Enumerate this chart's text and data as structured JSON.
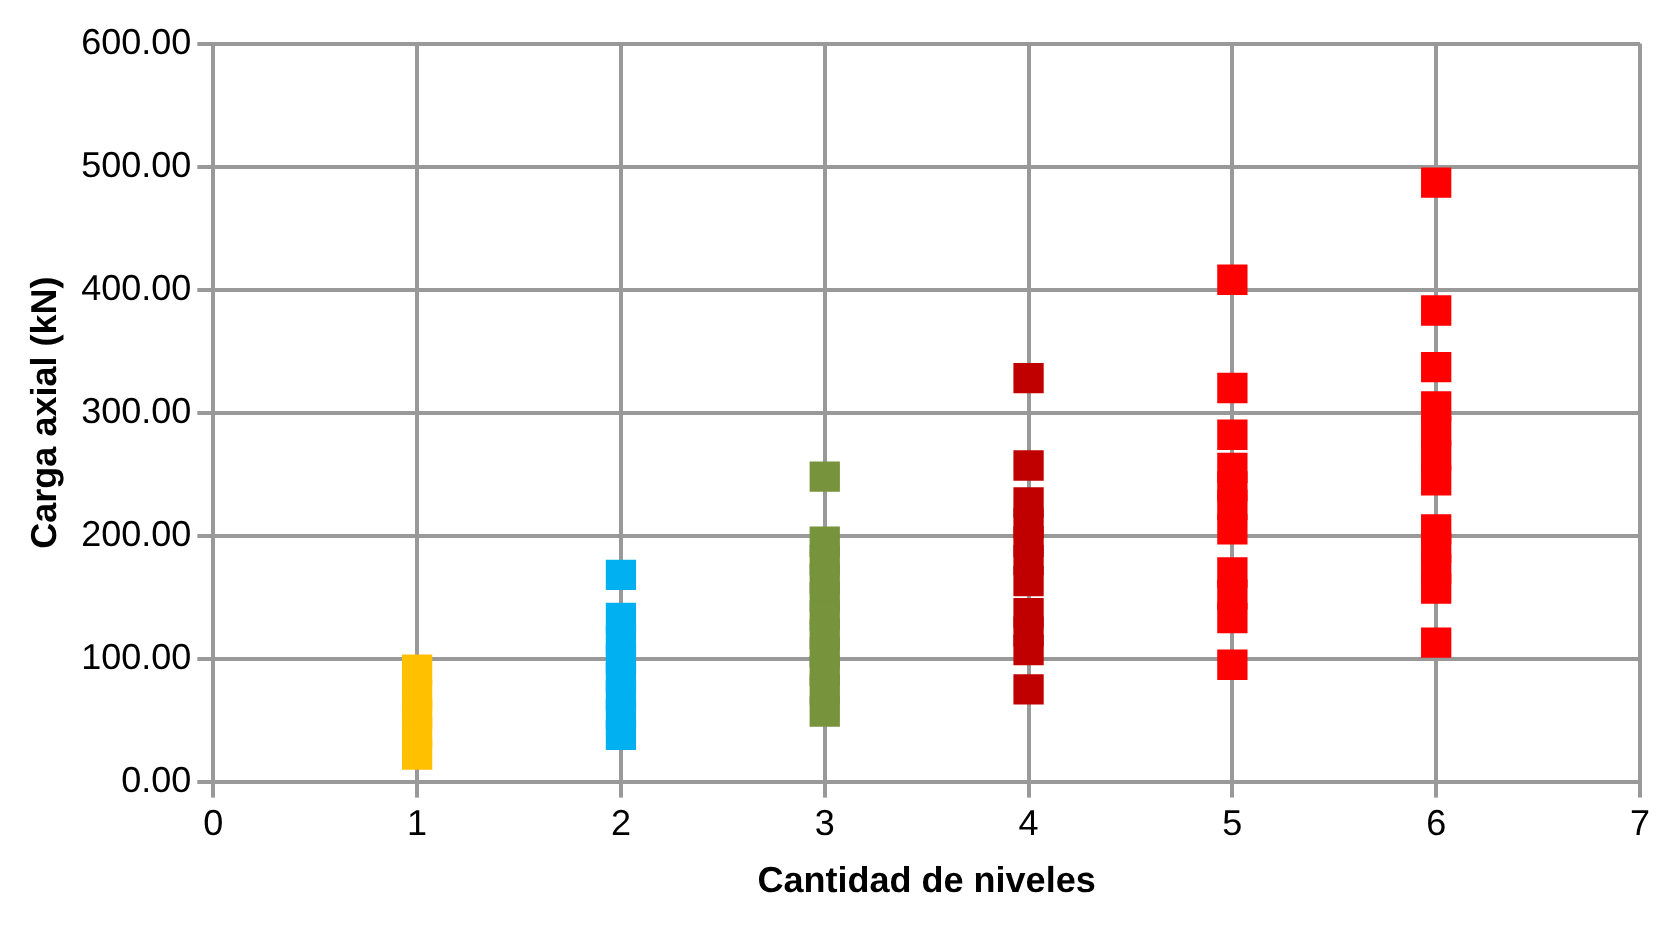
{
  "chart_data": {
    "type": "scatter",
    "xlabel": "Cantidad de niveles",
    "ylabel": "Carga axial (kN)",
    "xlim": [
      0,
      7
    ],
    "xticks": [
      0,
      1,
      2,
      3,
      4,
      5,
      6,
      7
    ],
    "ylim": [
      0,
      600
    ],
    "yticks": [
      {
        "value": 0,
        "label": "0.00"
      },
      {
        "value": 100,
        "label": "100.00"
      },
      {
        "value": 200,
        "label": "200.00"
      },
      {
        "value": 300,
        "label": "300.00"
      },
      {
        "value": 400,
        "label": "400.00"
      },
      {
        "value": 500,
        "label": "500.00"
      },
      {
        "value": 600,
        "label": "600.00"
      }
    ],
    "grid": true,
    "legend": false,
    "marker": "square",
    "series": [
      {
        "color": "#ffc000",
        "x": [
          1,
          1,
          1,
          1,
          1
        ],
        "values": [
          91,
          70,
          55,
          40,
          22
        ]
      },
      {
        "color": "#00b0f0",
        "x": [
          2,
          2,
          2,
          2,
          2,
          2,
          2,
          2
        ],
        "values": [
          168,
          133,
          115,
          100,
          85,
          70,
          55,
          38
        ]
      },
      {
        "color": "#77933c",
        "x": [
          3,
          3,
          3,
          3,
          3,
          3,
          3,
          3,
          3,
          3,
          3
        ],
        "values": [
          248,
          195,
          180,
          165,
          150,
          135,
          120,
          105,
          90,
          75,
          57
        ]
      },
      {
        "color": "#c00000",
        "x": [
          4,
          4,
          4,
          4,
          4,
          4,
          4,
          4,
          4,
          4,
          4
        ],
        "values": [
          328,
          257,
          227,
          210,
          195,
          180,
          163,
          137,
          122,
          107,
          75
        ]
      },
      {
        "color": "#ff0000",
        "x": [
          5,
          5,
          5,
          5,
          5,
          5,
          5,
          5,
          5,
          5,
          5
        ],
        "values": [
          408,
          320,
          282,
          255,
          240,
          225,
          205,
          170,
          152,
          133,
          95
        ]
      },
      {
        "color": "#ff0000",
        "x": [
          6,
          6,
          6,
          6,
          6,
          6,
          6,
          6,
          6,
          6,
          6,
          6
        ],
        "values": [
          487,
          383,
          337,
          305,
          285,
          265,
          245,
          205,
          190,
          173,
          157,
          113
        ]
      }
    ]
  }
}
